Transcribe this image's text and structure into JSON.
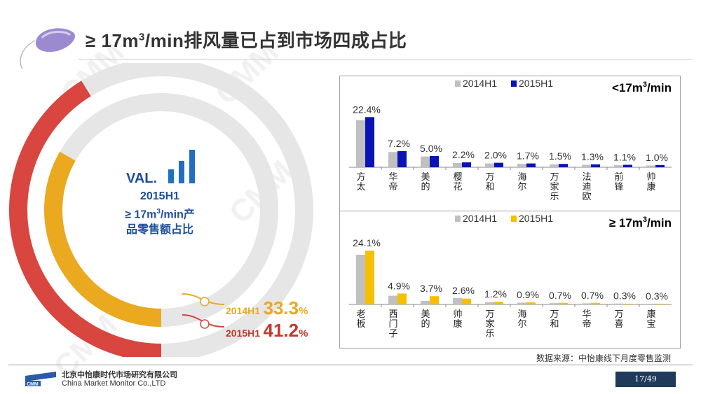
{
  "header": {
    "title_prefix": "≥ 17m",
    "title_sup": "3",
    "title_suffix": "/min排风量已占到市场四成占比"
  },
  "watermark_text": "CMM",
  "donut": {
    "val_label": "VAL.",
    "center_line1": "2015H1",
    "center_line2_prefix": "≥ 17m",
    "center_line2_sup": "3",
    "center_line2_suffix": "/min产",
    "center_line3": "品零售额占比",
    "series": [
      {
        "name": "2014H1",
        "value": 33.3,
        "value_label": "33.3",
        "color": "#eaa91f"
      },
      {
        "name": "2015H1",
        "value": 41.2,
        "value_label": "41.2",
        "color": "#d9453f"
      }
    ],
    "pct_sign": "%"
  },
  "chart_data": [
    {
      "type": "bar",
      "title": "<17m³/min",
      "title_prefix": "<17m",
      "title_sup": "3",
      "title_suffix": "/min",
      "categories": [
        "方太",
        "华帝",
        "美的",
        "樱花",
        "万和",
        "海尔",
        "万家乐",
        "法迪欧",
        "前锋",
        "帅康"
      ],
      "series": [
        {
          "name": "2014H1",
          "color": "#c0c0c0",
          "values": [
            21.0,
            6.8,
            4.8,
            1.9,
            1.7,
            1.5,
            1.3,
            1.1,
            0.9,
            0.8
          ]
        },
        {
          "name": "2015H1",
          "color": "#0a14b4",
          "values": [
            22.4,
            7.2,
            5.0,
            2.2,
            2.0,
            1.7,
            1.5,
            1.3,
            1.1,
            1.0
          ]
        }
      ],
      "data_labels": [
        "22.4%",
        "7.2%",
        "5.0%",
        "2.2%",
        "2.0%",
        "1.7%",
        "1.5%",
        "1.3%",
        "1.1%",
        "1.0%"
      ],
      "ylim": [
        0,
        25
      ],
      "legend": "top-center"
    },
    {
      "type": "bar",
      "title": "≥ 17m³/min",
      "title_prefix": "≥ 17m",
      "title_sup": "3",
      "title_suffix": "/min",
      "categories": [
        "老板",
        "西门子",
        "美的",
        "帅康",
        "万家乐",
        "海尔",
        "万和",
        "华帝",
        "万喜",
        "康宝"
      ],
      "series": [
        {
          "name": "2014H1",
          "color": "#c0c0c0",
          "values": [
            22.3,
            3.9,
            1.6,
            2.9,
            1.0,
            0.8,
            0.6,
            0.5,
            0.4,
            0.2
          ]
        },
        {
          "name": "2015H1",
          "color": "#f5c000",
          "values": [
            24.1,
            4.9,
            3.7,
            2.6,
            1.2,
            0.9,
            0.7,
            0.7,
            0.3,
            0.3
          ]
        }
      ],
      "data_labels": [
        "24.1%",
        "4.9%",
        "3.7%",
        "2.6%",
        "1.2%",
        "0.9%",
        "0.7%",
        "0.7%",
        "0.3%",
        "0.3%"
      ],
      "ylim": [
        0,
        27
      ],
      "legend": "top-center"
    }
  ],
  "footer": {
    "source": "数据来源：中怡康线下月度零售监测",
    "logo_abbr": "CMM",
    "company_cn": "北京中怡康时代市场研究有限公司",
    "company_en": "China Market Monitor Co.,LTD",
    "page": "17/49"
  }
}
